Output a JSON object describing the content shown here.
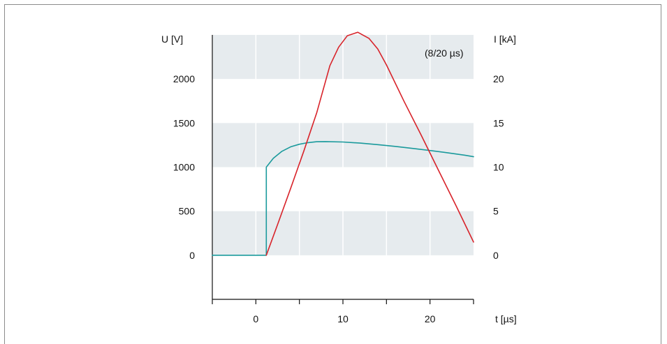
{
  "chart_data": {
    "type": "line",
    "annotation": "(8/20 µs)",
    "xlabel": "t [µs]",
    "ylabel_left": "U [V]",
    "ylabel_right": "I [kA]",
    "xlim": [
      -5,
      25
    ],
    "ylim_left": [
      -500,
      2500
    ],
    "ylim_right": [
      -5,
      25
    ],
    "x_ticks": [
      {
        "value": -5,
        "label": ""
      },
      {
        "value": 0,
        "label": "0"
      },
      {
        "value": 5,
        "label": ""
      },
      {
        "value": 10,
        "label": "10"
      },
      {
        "value": 15,
        "label": ""
      },
      {
        "value": 20,
        "label": "20"
      },
      {
        "value": 25,
        "label": ""
      }
    ],
    "y_ticks_left": [
      {
        "value": 0,
        "label": "0"
      },
      {
        "value": 500,
        "label": "500"
      },
      {
        "value": 1000,
        "label": "1000"
      },
      {
        "value": 1500,
        "label": "1500"
      },
      {
        "value": 2000,
        "label": "2000"
      }
    ],
    "y_ticks_right": [
      {
        "value": 0,
        "label": "0"
      },
      {
        "value": 5,
        "label": "5"
      },
      {
        "value": 10,
        "label": "10"
      },
      {
        "value": 15,
        "label": "15"
      },
      {
        "value": 20,
        "label": "20"
      }
    ],
    "grid": true,
    "band_color": "#e6ebee",
    "series": [
      {
        "axis": "left",
        "color": "#1a9a9c",
        "points": [
          [
            -5,
            0
          ],
          [
            1.2,
            0
          ],
          [
            1.2,
            1000
          ],
          [
            2,
            1100
          ],
          [
            3,
            1180
          ],
          [
            4,
            1230
          ],
          [
            5,
            1260
          ],
          [
            6,
            1278
          ],
          [
            7,
            1288
          ],
          [
            8,
            1290
          ],
          [
            10,
            1285
          ],
          [
            12,
            1272
          ],
          [
            14,
            1255
          ],
          [
            16,
            1235
          ],
          [
            18,
            1212
          ],
          [
            20,
            1188
          ],
          [
            22,
            1163
          ],
          [
            24,
            1135
          ],
          [
            25,
            1118
          ]
        ]
      },
      {
        "axis": "right",
        "color": "#d8232a",
        "points": [
          [
            1.2,
            0
          ],
          [
            2.5,
            3.5
          ],
          [
            4,
            7.6
          ],
          [
            5.5,
            11.8
          ],
          [
            7,
            16.2
          ],
          [
            8.5,
            21.5
          ],
          [
            9.5,
            23.6
          ],
          [
            10.5,
            24.9
          ],
          [
            11.7,
            25.3
          ],
          [
            13,
            24.6
          ],
          [
            14,
            23.4
          ],
          [
            15,
            21.6
          ],
          [
            17,
            17.5
          ],
          [
            19,
            13.6
          ],
          [
            21,
            9.6
          ],
          [
            23,
            5.6
          ],
          [
            25,
            1.5
          ]
        ]
      }
    ]
  }
}
